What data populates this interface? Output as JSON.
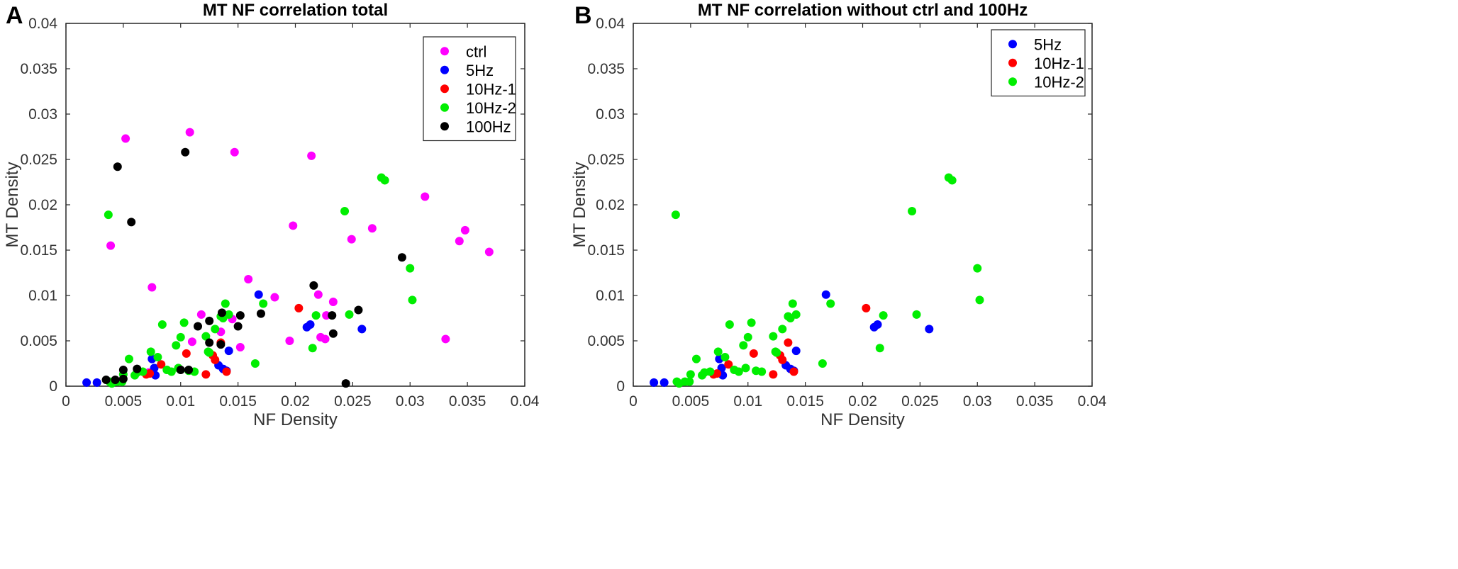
{
  "chart_data": [
    {
      "type": "scatter",
      "panel_label": "A",
      "title": "MT NF correlation total",
      "xlabel": "NF Density",
      "ylabel": "MT Density",
      "xlim": [
        0,
        0.04
      ],
      "ylim": [
        0,
        0.04
      ],
      "xticks": [
        "0",
        "0.005",
        "0.01",
        "0.015",
        "0.02",
        "0.025",
        "0.03",
        "0.035",
        "0.04"
      ],
      "yticks": [
        "0",
        "0.005",
        "0.01",
        "0.015",
        "0.02",
        "0.025",
        "0.03",
        "0.035",
        "0.04"
      ],
      "legend_position": "top-right",
      "series": [
        {
          "name": "ctrl",
          "color": "#ff00ff",
          "x": [
            0.0052,
            0.0108,
            0.0147,
            0.0214,
            0.0039,
            0.0075,
            0.0198,
            0.0267,
            0.0313,
            0.0343,
            0.0348,
            0.0369,
            0.0249,
            0.0159,
            0.0182,
            0.022,
            0.0227,
            0.0233,
            0.0145,
            0.0135,
            0.0118,
            0.011,
            0.0152,
            0.0195,
            0.0222,
            0.0226,
            0.0331,
            0.0072
          ],
          "y": [
            0.0273,
            0.028,
            0.0258,
            0.0254,
            0.0155,
            0.0109,
            0.0177,
            0.0174,
            0.0209,
            0.016,
            0.0172,
            0.0148,
            0.0162,
            0.0118,
            0.0098,
            0.0101,
            0.0078,
            0.0093,
            0.0074,
            0.006,
            0.0079,
            0.0049,
            0.0043,
            0.005,
            0.0054,
            0.0052,
            0.0052,
            0.0015
          ]
        },
        {
          "name": "5Hz",
          "color": "#0000ff",
          "x": [
            0.0018,
            0.0027,
            0.0075,
            0.0078,
            0.0133,
            0.0137,
            0.014,
            0.0142,
            0.0168,
            0.021,
            0.0213,
            0.0258,
            0.0077
          ],
          "y": [
            0.0004,
            0.0004,
            0.003,
            0.0012,
            0.0023,
            0.0019,
            0.0017,
            0.0039,
            0.0101,
            0.0065,
            0.0068,
            0.0063,
            0.002
          ]
        },
        {
          "name": "10Hz-1",
          "color": "#ff0000",
          "x": [
            0.0073,
            0.0083,
            0.0105,
            0.0122,
            0.0128,
            0.013,
            0.0135,
            0.014,
            0.0203,
            0.007
          ],
          "y": [
            0.0014,
            0.0024,
            0.0036,
            0.0013,
            0.0034,
            0.0029,
            0.0048,
            0.0016,
            0.0086,
            0.0013
          ]
        },
        {
          "name": "10Hz-2",
          "color": "#00ee00",
          "x": [
            0.0037,
            0.004,
            0.0045,
            0.005,
            0.0055,
            0.0062,
            0.0067,
            0.0074,
            0.008,
            0.0084,
            0.0088,
            0.0092,
            0.0096,
            0.01,
            0.0103,
            0.0107,
            0.0112,
            0.0122,
            0.0125,
            0.013,
            0.0135,
            0.0137,
            0.0139,
            0.0142,
            0.0165,
            0.0172,
            0.0215,
            0.0218,
            0.0243,
            0.0247,
            0.0275,
            0.0278,
            0.03,
            0.0302,
            0.0038,
            0.0049,
            0.006,
            0.0098,
            0.0124
          ],
          "y": [
            0.0189,
            0.0003,
            0.0005,
            0.0013,
            0.003,
            0.0015,
            0.0016,
            0.0038,
            0.0032,
            0.0068,
            0.0018,
            0.0016,
            0.0045,
            0.0054,
            0.007,
            0.0017,
            0.0016,
            0.0055,
            0.0037,
            0.0063,
            0.0077,
            0.0075,
            0.0091,
            0.0079,
            0.0025,
            0.0091,
            0.0042,
            0.0078,
            0.0193,
            0.0079,
            0.023,
            0.0227,
            0.013,
            0.0095,
            0.0005,
            0.0005,
            0.0012,
            0.002,
            0.0038
          ]
        },
        {
          "name": "100Hz",
          "color": "#000000",
          "x": [
            0.0045,
            0.0057,
            0.0104,
            0.0035,
            0.0043,
            0.005,
            0.0062,
            0.005,
            0.01,
            0.0107,
            0.0115,
            0.0125,
            0.0136,
            0.0152,
            0.015,
            0.017,
            0.0216,
            0.0232,
            0.0233,
            0.0255,
            0.0293,
            0.0244,
            0.0125,
            0.0135
          ],
          "y": [
            0.0242,
            0.0181,
            0.0258,
            0.0007,
            0.0007,
            0.0018,
            0.0019,
            0.0008,
            0.0018,
            0.0018,
            0.0066,
            0.0072,
            0.0081,
            0.0078,
            0.0066,
            0.008,
            0.0111,
            0.0078,
            0.0058,
            0.0084,
            0.0142,
            0.0003,
            0.0048,
            0.0046
          ]
        }
      ]
    },
    {
      "type": "scatter",
      "panel_label": "B",
      "title": "MT NF correlation without ctrl and 100Hz",
      "xlabel": "NF Density",
      "ylabel": "MT Density",
      "xlim": [
        0,
        0.04
      ],
      "ylim": [
        0,
        0.04
      ],
      "xticks": [
        "0",
        "0.005",
        "0.01",
        "0.015",
        "0.02",
        "0.025",
        "0.03",
        "0.035",
        "0.04"
      ],
      "yticks": [
        "0",
        "0.005",
        "0.01",
        "0.015",
        "0.02",
        "0.025",
        "0.03",
        "0.035",
        "0.04"
      ],
      "legend_position": "top-right",
      "series": [
        {
          "name": "5Hz",
          "color": "#0000ff",
          "x": [
            0.0018,
            0.0027,
            0.0075,
            0.0078,
            0.0133,
            0.0137,
            0.014,
            0.0142,
            0.0168,
            0.021,
            0.0213,
            0.0258,
            0.0077
          ],
          "y": [
            0.0004,
            0.0004,
            0.003,
            0.0012,
            0.0023,
            0.0019,
            0.0017,
            0.0039,
            0.0101,
            0.0065,
            0.0068,
            0.0063,
            0.002
          ]
        },
        {
          "name": "10Hz-1",
          "color": "#ff0000",
          "x": [
            0.0073,
            0.0083,
            0.0105,
            0.0122,
            0.0128,
            0.013,
            0.0135,
            0.014,
            0.0203,
            0.007
          ],
          "y": [
            0.0014,
            0.0024,
            0.0036,
            0.0013,
            0.0034,
            0.0029,
            0.0048,
            0.0016,
            0.0086,
            0.0013
          ]
        },
        {
          "name": "10Hz-2",
          "color": "#00ee00",
          "x": [
            0.0037,
            0.004,
            0.0045,
            0.005,
            0.0055,
            0.0062,
            0.0067,
            0.0074,
            0.008,
            0.0084,
            0.0088,
            0.0092,
            0.0096,
            0.01,
            0.0103,
            0.0107,
            0.0112,
            0.0122,
            0.0125,
            0.013,
            0.0135,
            0.0137,
            0.0139,
            0.0142,
            0.0165,
            0.0172,
            0.0215,
            0.0218,
            0.0243,
            0.0247,
            0.0275,
            0.0278,
            0.03,
            0.0302,
            0.0038,
            0.0049,
            0.006,
            0.0098,
            0.0124
          ],
          "y": [
            0.0189,
            0.0003,
            0.0005,
            0.0013,
            0.003,
            0.0015,
            0.0016,
            0.0038,
            0.0032,
            0.0068,
            0.0018,
            0.0016,
            0.0045,
            0.0054,
            0.007,
            0.0017,
            0.0016,
            0.0055,
            0.0037,
            0.0063,
            0.0077,
            0.0075,
            0.0091,
            0.0079,
            0.0025,
            0.0091,
            0.0042,
            0.0078,
            0.0193,
            0.0079,
            0.023,
            0.0227,
            0.013,
            0.0095,
            0.0005,
            0.0005,
            0.0012,
            0.002,
            0.0038
          ]
        }
      ]
    }
  ]
}
